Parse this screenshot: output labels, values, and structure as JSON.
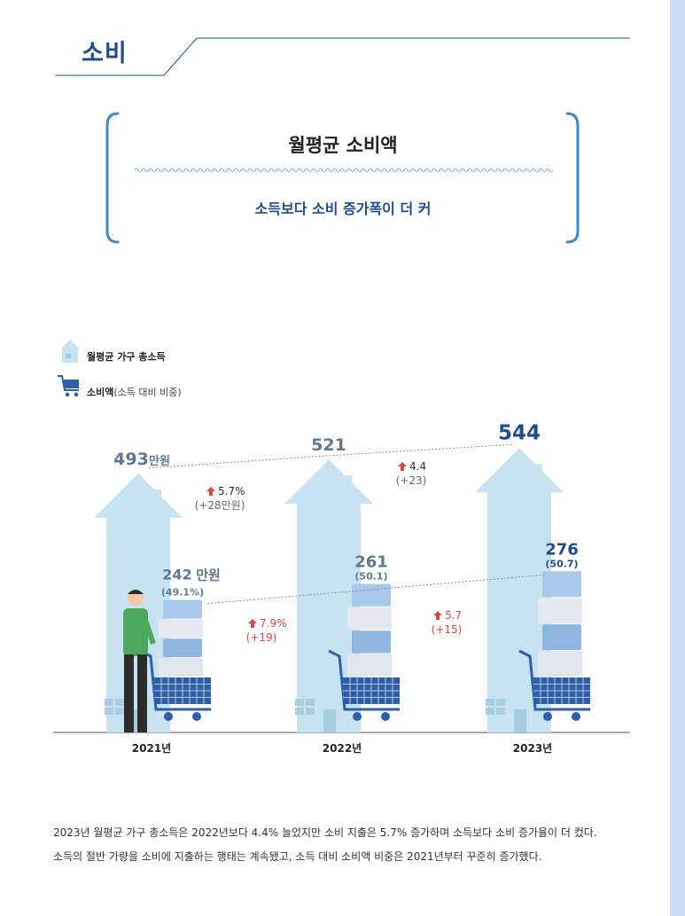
{
  "section": {
    "title": "소비"
  },
  "header": {
    "heading": "월평균 소비액",
    "subheading": "소득보다 소비 증가폭이 더 커"
  },
  "legend": {
    "income": {
      "icon": "house-icon",
      "label": "월평균 가구 총소득"
    },
    "spending": {
      "icon": "shopping-cart-icon",
      "label": "소비액",
      "sub_label": "(소득 대비 비중)"
    }
  },
  "colors": {
    "accent": "#1f4e8c",
    "house": "#c7e2f0",
    "up": "#e0473c",
    "cart": "#2f5fa8",
    "grey_text": "#5f7a90"
  },
  "chart_data": {
    "type": "bar",
    "categories": [
      "2021년",
      "2022년",
      "2023년"
    ],
    "series": [
      {
        "name": "월평균 가구 총소득",
        "values": [
          493,
          521,
          544
        ],
        "labels": [
          "493",
          "521",
          "544"
        ],
        "unit": "만원"
      },
      {
        "name": "소비액",
        "values": [
          242,
          261,
          276
        ],
        "labels": [
          "242",
          "261",
          "276"
        ],
        "unit": "만원",
        "share_labels": [
          "(49.1%)",
          "(50.1)",
          "(50.7)"
        ]
      }
    ],
    "income_changes": [
      {
        "pct": "5.7%",
        "abs": "(+28만원)"
      },
      {
        "pct": "4.4",
        "abs": "(+23)"
      }
    ],
    "spending_changes": [
      {
        "pct": "7.9%",
        "abs": "(+19)"
      },
      {
        "pct": "5.7",
        "abs": "(+15)"
      }
    ]
  },
  "footer": {
    "line1": "2023년 월평균 가구 총소득은 2022년보다 4.4% 늘었지만 소비 지출은 5.7% 증가하며 소득보다 소비 증가율이 더 컸다.",
    "line2": "소득의 절반 가량을 소비에 지출하는 행태는 계속됐고, 소득 대비 소비액 비중은 2021년부터 꾸준히 증가했다."
  }
}
